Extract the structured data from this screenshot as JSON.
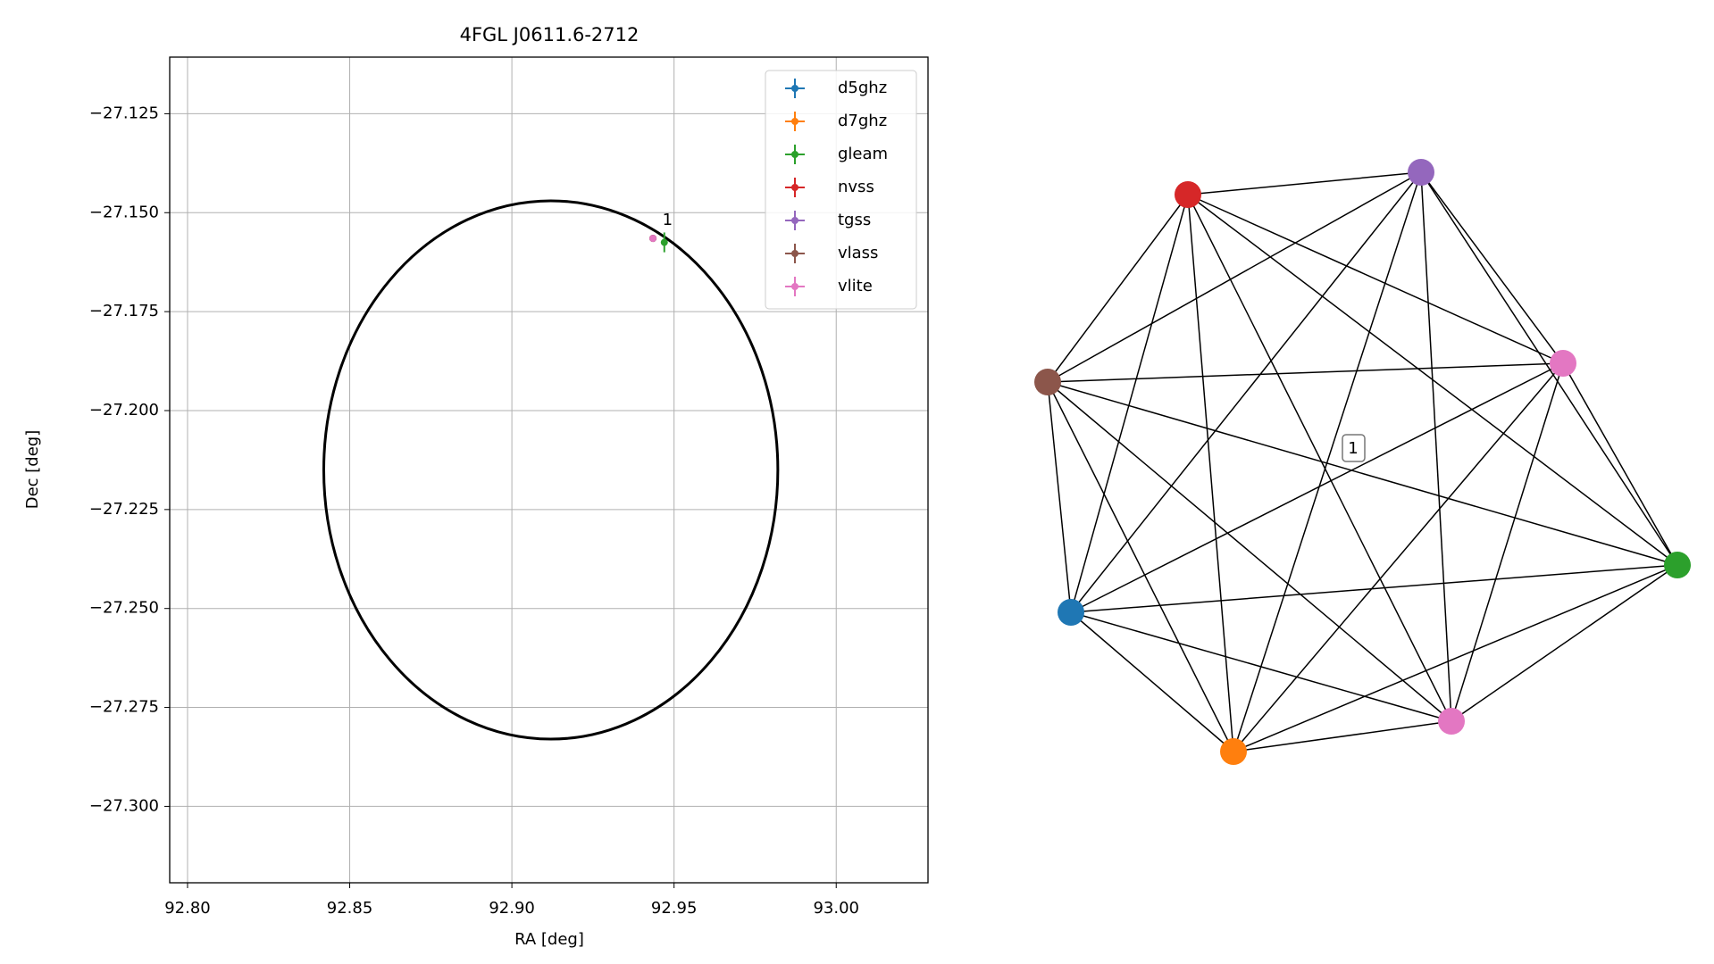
{
  "chart_data": [
    {
      "type": "scatter",
      "title": "4FGL J0611.6-2712",
      "xlabel": "RA [deg]",
      "ylabel": "Dec [deg]",
      "xlim": [
        92.7945,
        93.0283
      ],
      "ylim": [
        -27.3193,
        -27.1107
      ],
      "xticks": [
        {
          "value": 92.8,
          "label": "92.80"
        },
        {
          "value": 92.85,
          "label": "92.85"
        },
        {
          "value": 92.9,
          "label": "92.90"
        },
        {
          "value": 92.95,
          "label": "92.95"
        },
        {
          "value": 93.0,
          "label": "93.00"
        }
      ],
      "yticks": [
        {
          "value": -27.125,
          "label": "−27.125"
        },
        {
          "value": -27.15,
          "label": "−27.150"
        },
        {
          "value": -27.175,
          "label": "−27.175"
        },
        {
          "value": -27.2,
          "label": "−27.200"
        },
        {
          "value": -27.225,
          "label": "−27.225"
        },
        {
          "value": -27.25,
          "label": "−27.250"
        },
        {
          "value": -27.275,
          "label": "−27.275"
        },
        {
          "value": -27.3,
          "label": "−27.300"
        }
      ],
      "grid": true,
      "legend": "upper right",
      "ellipse": {
        "center": [
          92.912,
          -27.215
        ],
        "rx": 0.07,
        "ry": 0.068,
        "color": "#000000"
      },
      "annotation": {
        "text": "1",
        "x": 92.948,
        "y": -27.152
      },
      "series": [
        {
          "name": "d5ghz",
          "color": "#1f77b4",
          "x": [
            92.9435
          ],
          "y": [
            -27.1565
          ],
          "xerr": [
            0.0005
          ],
          "yerr": [
            0.0005
          ]
        },
        {
          "name": "d7ghz",
          "color": "#ff7f0e",
          "x": [
            92.9435
          ],
          "y": [
            -27.1565
          ],
          "xerr": [
            0.0005
          ],
          "yerr": [
            0.0005
          ]
        },
        {
          "name": "gleam",
          "color": "#2ca02c",
          "x": [
            92.947
          ],
          "y": [
            -27.1575
          ],
          "xerr": [
            0.0008
          ],
          "yerr": [
            0.0025
          ]
        },
        {
          "name": "nvss",
          "color": "#d62728",
          "x": [
            92.9435
          ],
          "y": [
            -27.1565
          ],
          "xerr": [
            0.0005
          ],
          "yerr": [
            0.0005
          ]
        },
        {
          "name": "tgss",
          "color": "#9467bd",
          "x": [
            92.9435
          ],
          "y": [
            -27.1565
          ],
          "xerr": [
            0.0008
          ],
          "yerr": [
            0.0008
          ]
        },
        {
          "name": "vlass",
          "color": "#8c564b",
          "x": [
            92.9435
          ],
          "y": [
            -27.1565
          ],
          "xerr": [
            0.0003
          ],
          "yerr": [
            0.0003
          ]
        },
        {
          "name": "vlite",
          "color": "#e377c2",
          "x": [
            92.9435
          ],
          "y": [
            -27.1565
          ],
          "xerr": [
            0.0008
          ],
          "yerr": [
            0.0008
          ]
        }
      ]
    },
    {
      "type": "network",
      "label": "1",
      "nodes": [
        {
          "color": "#d62728"
        },
        {
          "color": "#9467bd"
        },
        {
          "color": "#e377c2"
        },
        {
          "color": "#2ca02c"
        },
        {
          "color": "#e377c2"
        },
        {
          "color": "#ff7f0e"
        },
        {
          "color": "#1f77b4"
        },
        {
          "color": "#8c564b"
        }
      ]
    }
  ]
}
